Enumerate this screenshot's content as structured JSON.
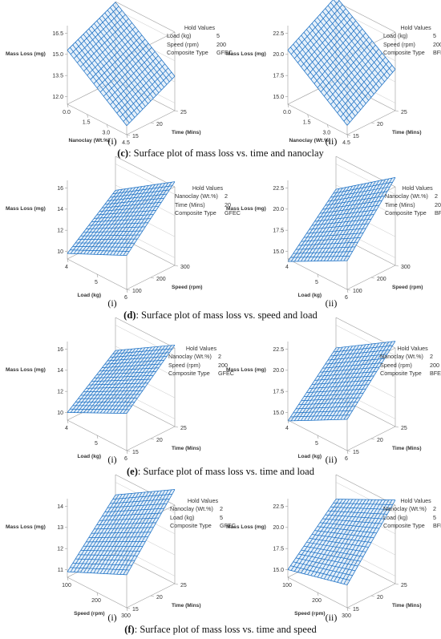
{
  "colors": {
    "surface": "#1a6fc4",
    "surface_fill": "#cfe3f6",
    "axes": "#9a9a9a",
    "text": "#333333"
  },
  "hold_title": "Hold Values",
  "rows": [
    {
      "caption_letter": "(c)",
      "caption_text": ": Surface plot of mass loss vs. time and nanoclay",
      "panels": [
        {
          "label": "(i)",
          "chart_data": {
            "type": "surface",
            "zlabel": "Mass Loss (mg)",
            "xlabel": "Nanoclay (Wt.%)",
            "ylabel": "Time (Mins)",
            "zticks": [
              "16.5",
              "15.0",
              "13.5",
              "12.0"
            ],
            "xticks": [
              "0.0",
              "1.5",
              "3.0",
              "4.5"
            ],
            "yticks": [
              "25",
              "20",
              "15"
            ],
            "corners": {
              "x0y0": 15.3,
              "x1y0": 12.1,
              "x0y1": 17.0,
              "x1y1": 13.9
            },
            "hold_values": [
              {
                "name": "Load (kg)",
                "value": "5"
              },
              {
                "name": "Speed (rpm)",
                "value": "200"
              },
              {
                "name": "Composite Type",
                "value": "GFEC"
              }
            ]
          }
        },
        {
          "label": "(ii)",
          "chart_data": {
            "type": "surface",
            "zlabel": "Mass Loss (mg)",
            "xlabel": "Nanoclay (Wt.%)",
            "ylabel": "Time (Mins)",
            "zticks": [
              "22.5",
              "20.0",
              "17.5",
              "15.0"
            ],
            "xticks": [
              "0.0",
              "1.5",
              "3.0",
              "4.5"
            ],
            "yticks": [
              "25",
              "20",
              "15"
            ],
            "corners": {
              "x0y0": 20.5,
              "x1y0": 15.2,
              "x0y1": 24.0,
              "x1y1": 19.0
            },
            "hold_values": [
              {
                "name": "Load (kg)",
                "value": "5"
              },
              {
                "name": "Speed (rpm)",
                "value": "200"
              },
              {
                "name": "Composite Type",
                "value": "BFEC"
              }
            ]
          }
        }
      ]
    },
    {
      "caption_letter": "(d)",
      "caption_text": ": Surface plot of mass loss vs. speed and load",
      "panels": [
        {
          "label": "(i)",
          "chart_data": {
            "type": "surface",
            "zlabel": "Mass Loss (mg)",
            "xlabel": "Load (kg)",
            "ylabel": "Speed (rpm)",
            "zticks": [
              "16",
              "14",
              "12",
              "10"
            ],
            "xticks": [
              "4",
              "5",
              "6"
            ],
            "yticks": [
              "300",
              "200",
              "100"
            ],
            "corners": {
              "x0y0": 9.8,
              "x1y0": 12.5,
              "x0y1": 13.5,
              "x1y1": 17.2
            },
            "hold_values": [
              {
                "name": "Nanoclay (Wt.%)",
                "value": "2"
              },
              {
                "name": "Time (Mins)",
                "value": "20"
              },
              {
                "name": "Composite Type",
                "value": "GFEC"
              }
            ]
          }
        },
        {
          "label": "(ii)",
          "chart_data": {
            "type": "surface",
            "zlabel": "Mass Loss (mg)",
            "xlabel": "Load (kg)",
            "ylabel": "Speed (rpm)",
            "zticks": [
              "22.5",
              "20.0",
              "17.5",
              "15.0"
            ],
            "xticks": [
              "4",
              "5",
              "6"
            ],
            "yticks": [
              "300",
              "200",
              "100"
            ],
            "corners": {
              "x0y0": 13.8,
              "x1y0": 17.5,
              "x0y1": 19.5,
              "x1y1": 24.5
            },
            "hold_values": [
              {
                "name": "Nanoclay (Wt.%)",
                "value": "2"
              },
              {
                "name": "Time (Mins)",
                "value": "20"
              },
              {
                "name": "Composite Type",
                "value": "BFEC"
              }
            ]
          }
        }
      ]
    },
    {
      "caption_letter": "(e)",
      "caption_text": ": Surface plot of mass loss vs. time and load",
      "panels": [
        {
          "label": "(i)",
          "chart_data": {
            "type": "surface",
            "zlabel": "Mass Loss (mg)",
            "xlabel": "Load (kg)",
            "ylabel": "Time (Mins)",
            "zticks": [
              "16",
              "14",
              "12",
              "10"
            ],
            "xticks": [
              "4",
              "5",
              "6"
            ],
            "yticks": [
              "25",
              "20",
              "15"
            ],
            "corners": {
              "x0y0": 10.0,
              "x1y0": 12.8,
              "x0y1": 13.6,
              "x1y1": 17.0
            },
            "hold_values": [
              {
                "name": "Nanoclay (Wt.%)",
                "value": "2"
              },
              {
                "name": "Speed (rpm)",
                "value": "200"
              },
              {
                "name": "Composite Type",
                "value": "GFEC"
              }
            ]
          }
        },
        {
          "label": "(ii)",
          "chart_data": {
            "type": "surface",
            "zlabel": "Mass Loss (mg)",
            "xlabel": "Load (kg)",
            "ylabel": "Time (Mins)",
            "zticks": [
              "22.5",
              "20.0",
              "17.5",
              "15.0"
            ],
            "xticks": [
              "4",
              "5",
              "6"
            ],
            "yticks": [
              "25",
              "20",
              "15"
            ],
            "corners": {
              "x0y0": 14.0,
              "x1y0": 17.8,
              "x0y1": 19.8,
              "x1y1": 24.2
            },
            "hold_values": [
              {
                "name": "Nanoclay (Wt.%)",
                "value": "2"
              },
              {
                "name": "Speed (rpm)",
                "value": "200"
              },
              {
                "name": "Composite Type",
                "value": "BFEC"
              }
            ]
          }
        }
      ]
    },
    {
      "caption_letter": "(f)",
      "caption_text": ": Surface plot of mass loss vs. time and speed",
      "panels": [
        {
          "label": "(i)",
          "chart_data": {
            "type": "surface",
            "zlabel": "Mass Loss (mg)",
            "xlabel": "Speed (rpm)",
            "ylabel": "Time (Mins)",
            "zticks": [
              "14",
              "13",
              "12",
              "11"
            ],
            "xticks": [
              "100",
              "200",
              "300"
            ],
            "yticks": [
              "25",
              "20",
              "15"
            ],
            "corners": {
              "x0y0": 10.9,
              "x1y0": 12.2,
              "x0y1": 13.4,
              "x1y1": 15.1
            },
            "hold_values": [
              {
                "name": "Nanoclay (Wt.%)",
                "value": "2"
              },
              {
                "name": "Load (kg)",
                "value": "5"
              },
              {
                "name": "Composite Type",
                "value": "GFEC"
              }
            ]
          }
        },
        {
          "label": "(ii)",
          "chart_data": {
            "type": "surface",
            "zlabel": "Mass Loss (mg)",
            "xlabel": "Speed (rpm)",
            "ylabel": "Time (Mins)",
            "zticks": [
              "22.5",
              "20.0",
              "17.5",
              "15.0"
            ],
            "xticks": [
              "100",
              "200",
              "300"
            ],
            "yticks": [
              "25",
              "20",
              "15"
            ],
            "corners": {
              "x0y0": 15.0,
              "x1y0": 16.8,
              "x0y1": 20.5,
              "x1y1": 24.0
            },
            "hold_values": [
              {
                "name": "Nanoclay (Wt.%)",
                "value": "2"
              },
              {
                "name": "Load (kg)",
                "value": "5"
              },
              {
                "name": "Composite Type",
                "value": "BFEC"
              }
            ]
          }
        }
      ]
    }
  ]
}
